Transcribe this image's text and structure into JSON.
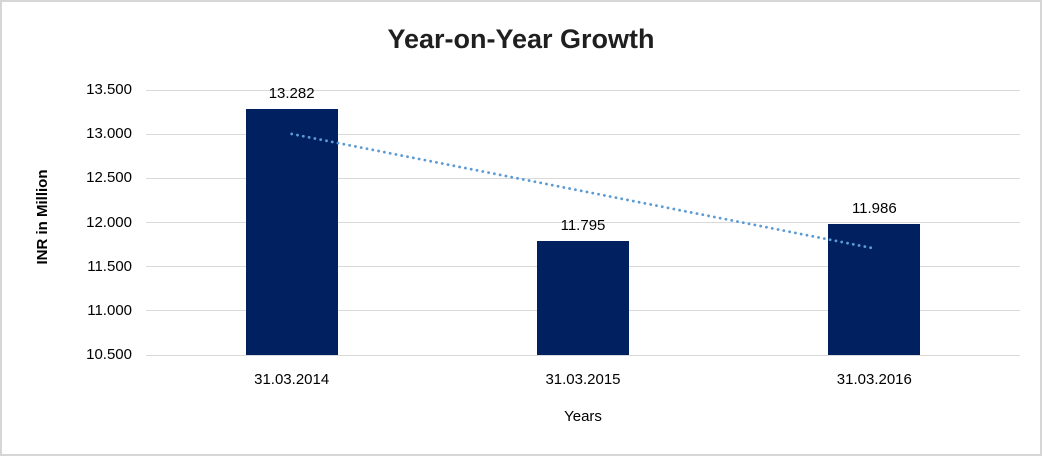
{
  "chart_data": {
    "type": "bar",
    "title": "Year-on-Year Growth",
    "categories": [
      "31.03.2014",
      "31.03.2015",
      "31.03.2016"
    ],
    "values": [
      13282,
      11795,
      11986
    ],
    "value_labels": [
      "13.282",
      "11.795",
      "11.986"
    ],
    "xlabel": "Years",
    "ylabel": "INR in Million",
    "ylim": [
      10500,
      13500
    ],
    "yticks": [
      10500,
      11000,
      11500,
      12000,
      12500,
      13000,
      13500
    ],
    "ytick_labels": [
      "10.500",
      "11.000",
      "11.500",
      "12.000",
      "12.500",
      "13.000",
      "13.500"
    ],
    "grid": true,
    "legend": "none",
    "bar_color": "#002060",
    "gridline_color": "#d9d9d9",
    "border_color": "#d6d6d6",
    "trendline": {
      "type": "linear",
      "style": "dotted",
      "color": "#5b9bd5"
    }
  }
}
